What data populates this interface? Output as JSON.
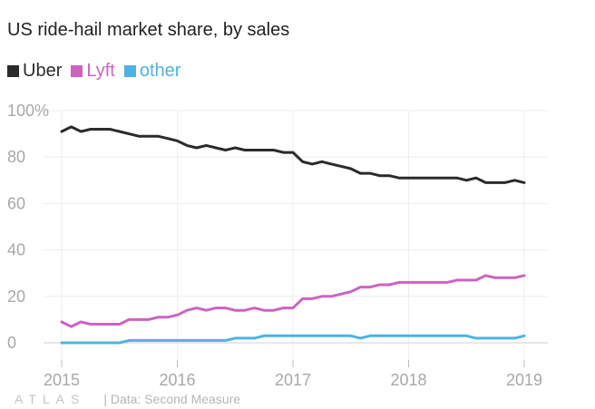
{
  "chart_data": {
    "type": "line",
    "title": "US ride-hail market share, by sales",
    "xlabel": "",
    "ylabel": "",
    "x_ticks": [
      "2015",
      "2016",
      "2017",
      "2018",
      "2019"
    ],
    "y_ticks": [
      "100%",
      "80",
      "60",
      "40",
      "20",
      "0"
    ],
    "xlim": [
      2015,
      2019
    ],
    "ylim": [
      -7,
      105
    ],
    "grid": true,
    "legend_position": "top-left",
    "x": [
      2015.0,
      2015.083,
      2015.167,
      2015.25,
      2015.333,
      2015.417,
      2015.5,
      2015.583,
      2015.667,
      2015.75,
      2015.833,
      2015.917,
      2016.0,
      2016.083,
      2016.167,
      2016.25,
      2016.333,
      2016.417,
      2016.5,
      2016.583,
      2016.667,
      2016.75,
      2016.833,
      2016.917,
      2017.0,
      2017.083,
      2017.167,
      2017.25,
      2017.333,
      2017.417,
      2017.5,
      2017.583,
      2017.667,
      2017.75,
      2017.833,
      2017.917,
      2018.0,
      2018.083,
      2018.167,
      2018.25,
      2018.333,
      2018.417,
      2018.5,
      2018.583,
      2018.667,
      2018.75,
      2018.833,
      2018.917,
      2019.0
    ],
    "series": [
      {
        "name": "Uber",
        "color": "#2b2b2b",
        "values": [
          91,
          93,
          91,
          92,
          92,
          92,
          91,
          90,
          89,
          89,
          89,
          88,
          87,
          85,
          84,
          85,
          84,
          83,
          84,
          83,
          83,
          83,
          83,
          82,
          82,
          78,
          77,
          78,
          77,
          76,
          75,
          73,
          73,
          72,
          72,
          71,
          71,
          71,
          71,
          71,
          71,
          71,
          70,
          71,
          69,
          69,
          69,
          70,
          69
        ]
      },
      {
        "name": "Lyft",
        "color": "#cc63c1",
        "values": [
          9,
          7,
          9,
          8,
          8,
          8,
          8,
          10,
          10,
          10,
          11,
          11,
          12,
          14,
          15,
          14,
          15,
          15,
          14,
          14,
          15,
          14,
          14,
          15,
          15,
          19,
          19,
          20,
          20,
          21,
          22,
          24,
          24,
          25,
          25,
          26,
          26,
          26,
          26,
          26,
          26,
          27,
          27,
          27,
          29,
          28,
          28,
          28,
          29
        ]
      },
      {
        "name": "other",
        "color": "#4fb2e3",
        "values": [
          0,
          0,
          0,
          0,
          0,
          0,
          0,
          1,
          1,
          1,
          1,
          1,
          1,
          1,
          1,
          1,
          1,
          1,
          2,
          2,
          2,
          3,
          3,
          3,
          3,
          3,
          3,
          3,
          3,
          3,
          3,
          2,
          3,
          3,
          3,
          3,
          3,
          3,
          3,
          3,
          3,
          3,
          3,
          2,
          2,
          2,
          2,
          2,
          3
        ]
      }
    ]
  },
  "footer": {
    "brand": "ATLAS",
    "source": "| Data: Second Measure"
  }
}
